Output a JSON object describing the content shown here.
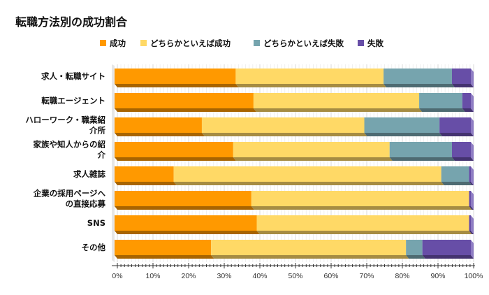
{
  "chart_data": {
    "type": "bar",
    "orientation": "horizontal",
    "stacked": "100%",
    "title": "転職方法別の成功割合",
    "categories": [
      "求人・転職サイト",
      "転職エージェント",
      "ハローワーク・職業紹介所",
      "家族や知人からの紹介",
      "求人雑誌",
      "企業の採用ページへの直接応募",
      "SNS",
      "その他"
    ],
    "category_lines": [
      [
        "求人・転職サイト"
      ],
      [
        "転職エージェント"
      ],
      [
        "ハローワーク・職業紹",
        "介所"
      ],
      [
        "家族や知人からの紹",
        "介"
      ],
      [
        "求人雑誌"
      ],
      [
        "企業の採用ページへ",
        "の直接応募"
      ],
      [
        "SNS"
      ],
      [
        "その他"
      ]
    ],
    "series": [
      {
        "name": "成功",
        "color": "#FF9900",
        "values": [
          34.0,
          39.0,
          24.5,
          33.3,
          16.6,
          38.4,
          39.9,
          27.1
        ]
      },
      {
        "name": "どちらかといえば成功",
        "color": "#FFD966",
        "values": [
          41.5,
          46.5,
          45.6,
          43.9,
          75.1,
          61.1,
          59.6,
          54.7
        ]
      },
      {
        "name": "どちらかといえば失敗",
        "color": "#76A4AE",
        "values": [
          19.2,
          12.1,
          21.1,
          17.5,
          7.8,
          0,
          0,
          4.6
        ]
      },
      {
        "name": "失敗",
        "color": "#674EA7",
        "values": [
          5.3,
          2.4,
          8.8,
          5.3,
          0.5,
          0.5,
          0.5,
          13.6
        ]
      }
    ],
    "xlim": [
      0,
      100
    ],
    "xticks": [
      "0%",
      "10%",
      "20%",
      "30%",
      "40%",
      "50%",
      "60%",
      "70%",
      "80%",
      "90%",
      "100%"
    ],
    "grid": true,
    "legend_position": "top",
    "style": "3d"
  }
}
